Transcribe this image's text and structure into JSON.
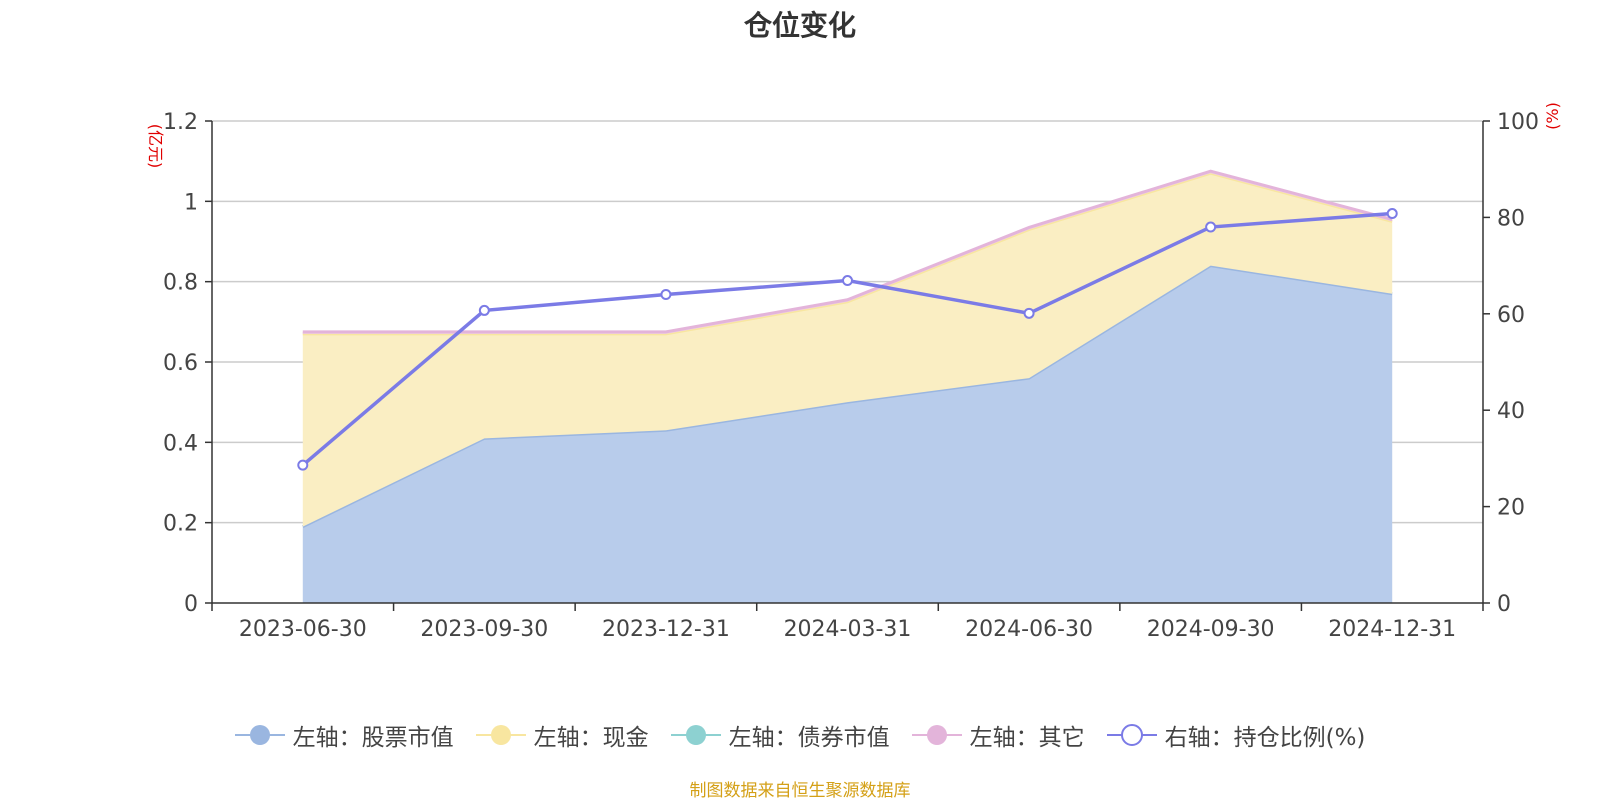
{
  "chart_data": {
    "type": "area",
    "title": "仓位变化",
    "categories": [
      "2023-06-30",
      "2023-09-30",
      "2023-12-31",
      "2024-03-31",
      "2024-06-30",
      "2024-09-30",
      "2024-12-31"
    ],
    "left_axis": {
      "unit_label": "(亿元)",
      "ylim": [
        0,
        1.2
      ],
      "ticks": [
        "0",
        "0.2",
        "0.4",
        "0.6",
        "0.8",
        "1",
        "1.2"
      ]
    },
    "right_axis": {
      "unit_label": "(%)",
      "ylim": [
        0,
        100
      ],
      "ticks": [
        "0",
        "20",
        "40",
        "60",
        "80",
        "100"
      ]
    },
    "series": [
      {
        "name": "左轴：股票市值",
        "axis": "left",
        "kind": "stacked-area",
        "color": "#9ab6e0",
        "fill": "#b8cceb",
        "values": [
          0.19,
          0.41,
          0.43,
          0.5,
          0.56,
          0.84,
          0.77
        ]
      },
      {
        "name": "左轴：现金",
        "axis": "left",
        "kind": "stacked-area",
        "color": "#f8e6a0",
        "fill": "#faeec3",
        "values": [
          0.48,
          0.26,
          0.24,
          0.25,
          0.37,
          0.23,
          0.18
        ]
      },
      {
        "name": "左轴：债券市值",
        "axis": "left",
        "kind": "stacked-area",
        "color": "#8dd1d1",
        "fill": "#b6e2e2",
        "values": [
          0,
          0,
          0,
          0,
          0,
          0,
          0
        ]
      },
      {
        "name": "左轴：其它",
        "axis": "left",
        "kind": "stacked-area",
        "color": "#e3b4da",
        "fill": "#efcde9",
        "values": [
          0.005,
          0.005,
          0.005,
          0.005,
          0.005,
          0.005,
          0.005
        ]
      },
      {
        "name": "右轴：持仓比例(%)",
        "axis": "right",
        "kind": "line",
        "color": "#7b7be6",
        "values": [
          28.6,
          60.7,
          64.0,
          66.9,
          60.1,
          78.0,
          80.8
        ]
      }
    ],
    "grid": true,
    "legend_position": "bottom"
  },
  "source_note": "制图数据来自恒生聚源数据库"
}
